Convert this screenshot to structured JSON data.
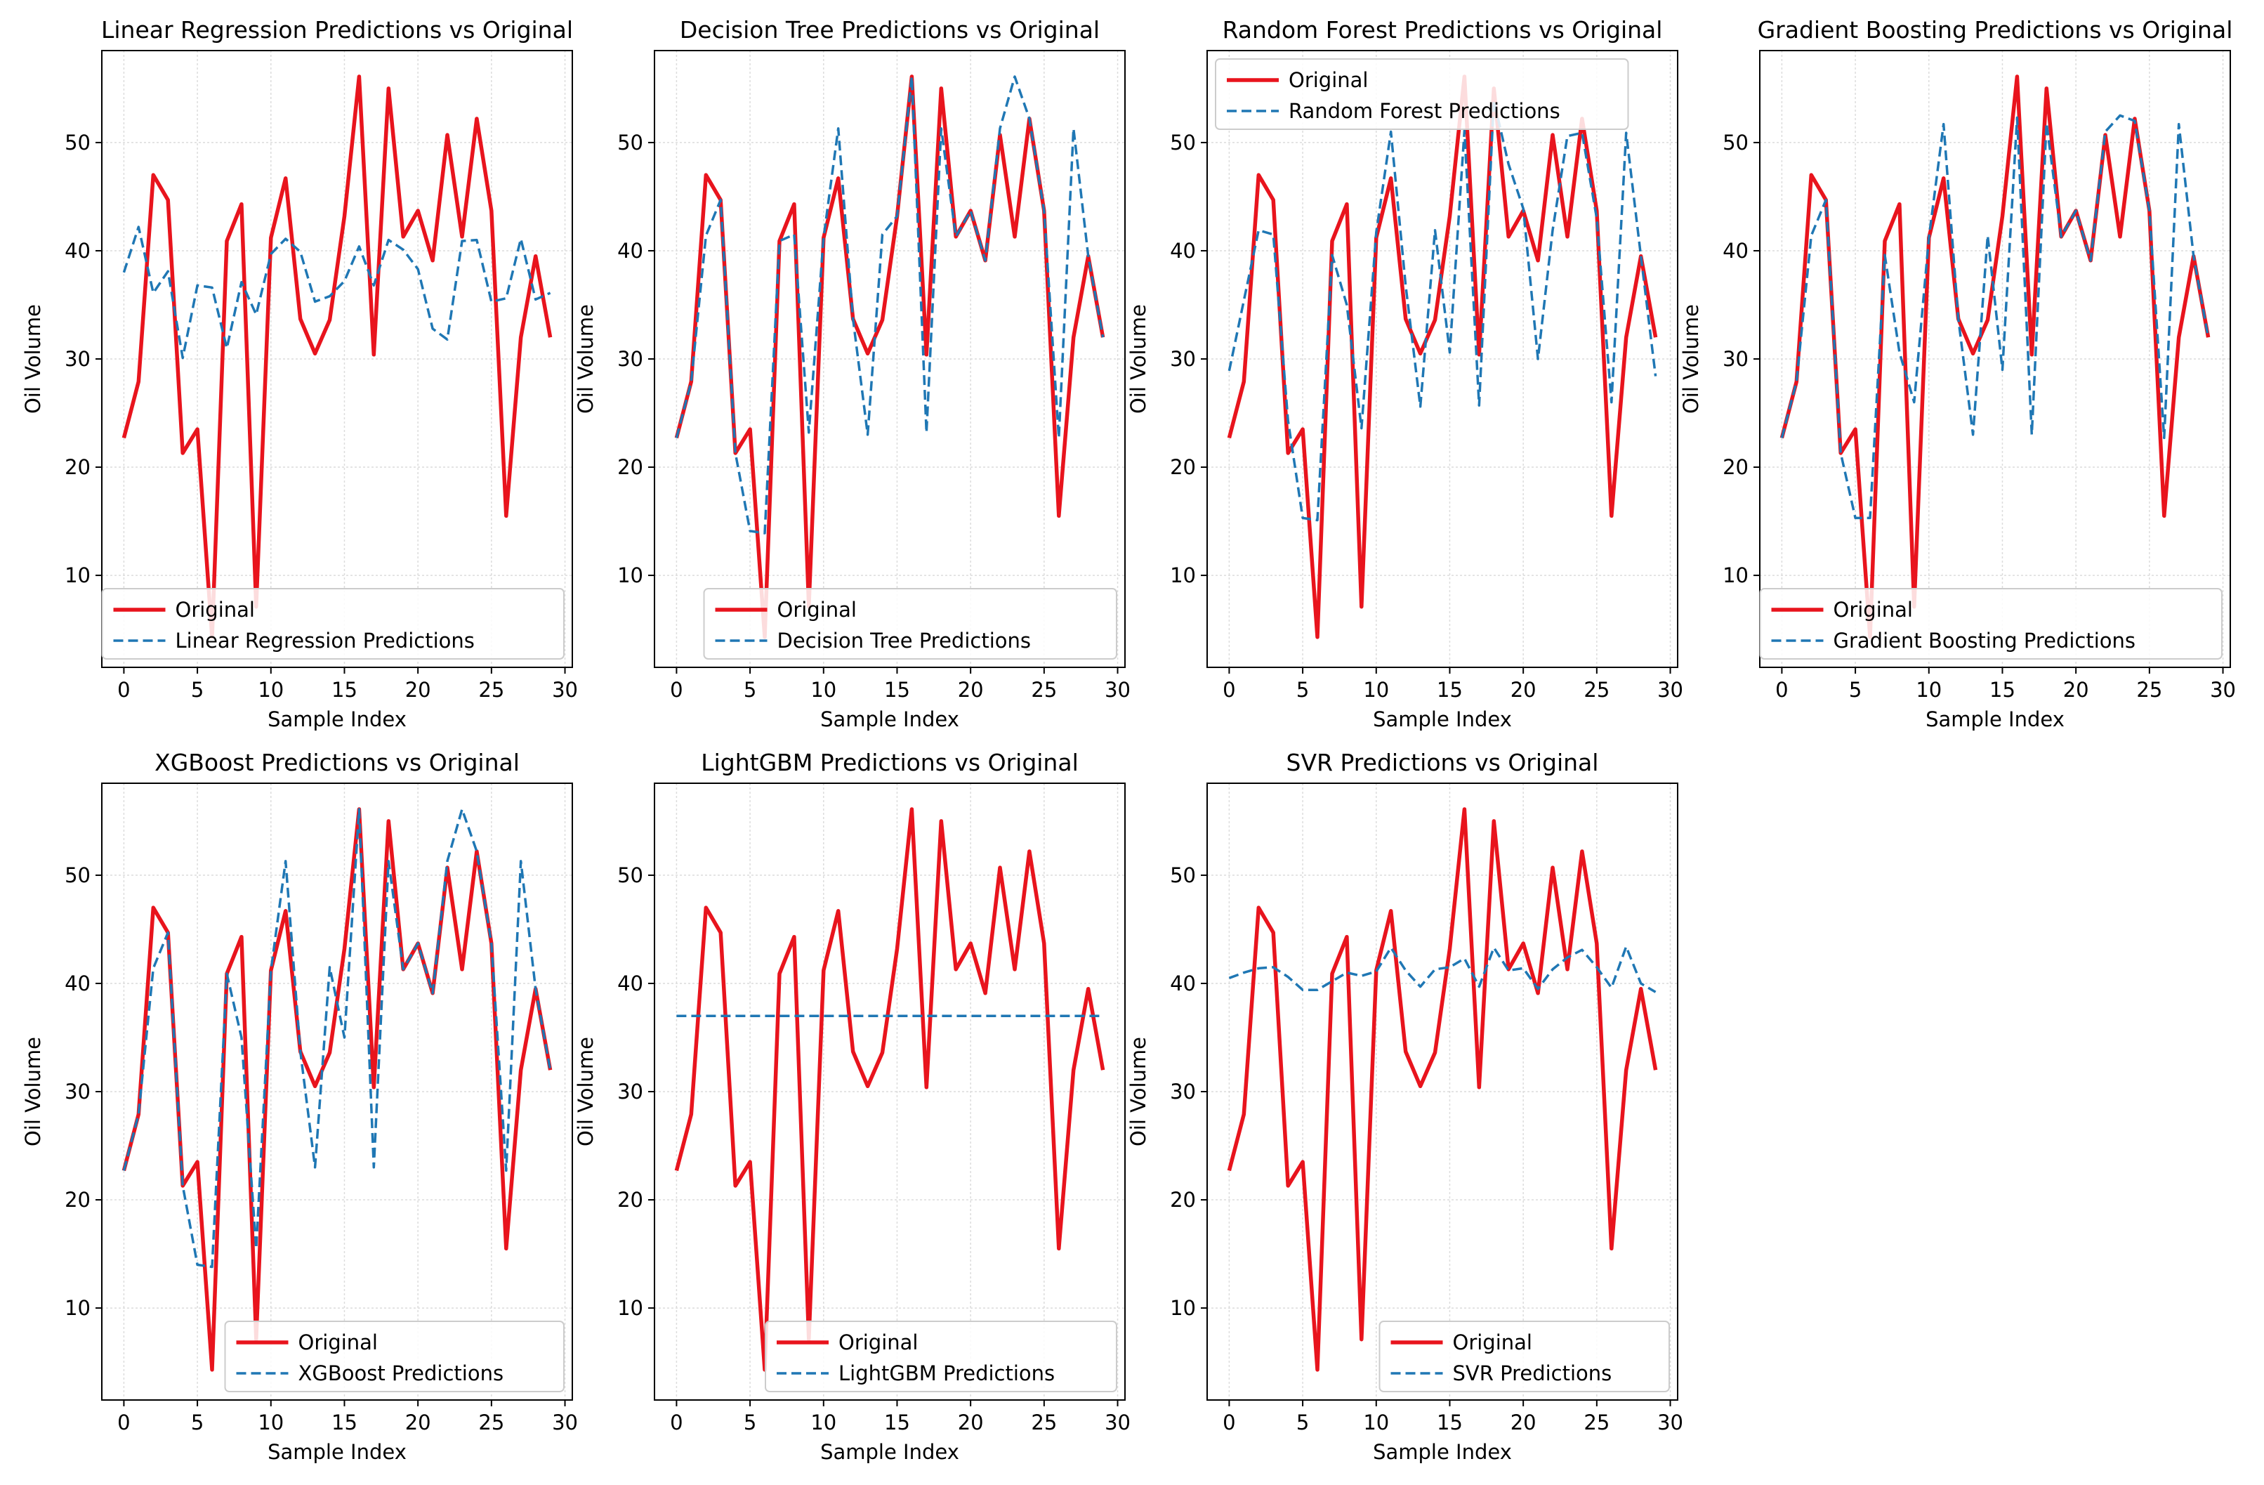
{
  "figure": {
    "shared": {
      "xlabel": "Sample Index",
      "ylabel": "Oil Volume",
      "xticks": [
        0,
        5,
        10,
        15,
        20,
        25,
        30
      ],
      "yticks": [
        10,
        20,
        30,
        40,
        50
      ],
      "xlim": [
        -1.5,
        30.5
      ],
      "ylim": [
        1.5,
        58.5
      ],
      "grid": true,
      "original_color": "#e8141d",
      "prediction_color": "#1f77b4"
    }
  },
  "chart_data": [
    {
      "type": "line",
      "title": "Linear Regression Predictions vs Original",
      "legend_position": "lower-right",
      "x": [
        0,
        1,
        2,
        3,
        4,
        5,
        6,
        7,
        8,
        9,
        10,
        11,
        12,
        13,
        14,
        15,
        16,
        17,
        18,
        19,
        20,
        21,
        22,
        23,
        24,
        25,
        26,
        27,
        28,
        29
      ],
      "series": [
        {
          "name": "Original",
          "style": "solid",
          "values": [
            22.7,
            27.9,
            47.0,
            44.7,
            21.3,
            23.5,
            4.3,
            40.9,
            44.3,
            7.1,
            41.2,
            46.7,
            33.7,
            30.5,
            33.6,
            43.2,
            56.1,
            30.4,
            55.0,
            41.3,
            43.7,
            39.1,
            50.7,
            41.3,
            52.2,
            43.7,
            15.5,
            32.0,
            39.5,
            32.0
          ]
        },
        {
          "name": "Linear Regression Predictions",
          "style": "dashed",
          "values": [
            38.0,
            42.2,
            36.1,
            38.1,
            30.1,
            36.8,
            36.6,
            31.0,
            37.1,
            34.1,
            39.7,
            41.1,
            39.9,
            35.3,
            35.8,
            37.2,
            40.4,
            36.8,
            41.0,
            40.1,
            38.3,
            32.8,
            31.8,
            40.9,
            41.0,
            35.3,
            35.6,
            41.1,
            35.5,
            36.1
          ]
        }
      ]
    },
    {
      "type": "line",
      "title": "Decision Tree Predictions vs Original",
      "legend_position": "lower-right",
      "x": [
        0,
        1,
        2,
        3,
        4,
        5,
        6,
        7,
        8,
        9,
        10,
        11,
        12,
        13,
        14,
        15,
        16,
        17,
        18,
        19,
        20,
        21,
        22,
        23,
        24,
        25,
        26,
        27,
        28,
        29
      ],
      "series": [
        {
          "name": "Original",
          "style": "solid",
          "values": [
            22.7,
            27.9,
            47.0,
            44.7,
            21.3,
            23.5,
            4.3,
            40.9,
            44.3,
            7.1,
            41.2,
            46.7,
            33.7,
            30.5,
            33.6,
            43.2,
            56.1,
            30.4,
            55.0,
            41.3,
            43.7,
            39.1,
            50.7,
            41.3,
            52.2,
            43.7,
            15.5,
            32.0,
            39.5,
            32.0
          ]
        },
        {
          "name": "Decision Tree Predictions",
          "style": "dashed",
          "values": [
            22.7,
            27.9,
            41.4,
            44.7,
            21.3,
            14.1,
            13.9,
            40.9,
            41.5,
            23.2,
            41.2,
            51.3,
            33.7,
            23.0,
            41.5,
            43.2,
            56.1,
            23.2,
            51.3,
            41.3,
            43.7,
            39.1,
            51.3,
            56.1,
            52.2,
            43.7,
            22.7,
            51.3,
            39.5,
            32.0
          ]
        }
      ]
    },
    {
      "type": "line",
      "title": "Random Forest Predictions vs Original",
      "legend_position": "upper-left",
      "x": [
        0,
        1,
        2,
        3,
        4,
        5,
        6,
        7,
        8,
        9,
        10,
        11,
        12,
        13,
        14,
        15,
        16,
        17,
        18,
        19,
        20,
        21,
        22,
        23,
        24,
        25,
        26,
        27,
        28,
        29
      ],
      "series": [
        {
          "name": "Original",
          "style": "solid",
          "values": [
            22.7,
            27.9,
            47.0,
            44.7,
            21.3,
            23.5,
            4.3,
            40.9,
            44.3,
            7.1,
            41.2,
            46.7,
            33.7,
            30.5,
            33.6,
            43.2,
            56.1,
            30.4,
            55.0,
            41.3,
            43.7,
            39.1,
            50.7,
            41.3,
            52.2,
            43.7,
            15.5,
            32.0,
            39.5,
            32.0
          ]
        },
        {
          "name": "Random Forest Predictions",
          "style": "dashed",
          "values": [
            28.9,
            35.4,
            41.9,
            41.5,
            24.3,
            15.3,
            15.1,
            39.6,
            35.0,
            23.6,
            41.7,
            51.0,
            36.8,
            25.6,
            41.9,
            30.6,
            51.1,
            25.7,
            53.9,
            48.0,
            43.9,
            30.0,
            41.9,
            50.6,
            50.9,
            43.0,
            26.0,
            50.9,
            39.5,
            28.4
          ]
        }
      ]
    },
    {
      "type": "line",
      "title": "Gradient Boosting Predictions vs Original",
      "legend_position": "lower-right",
      "x": [
        0,
        1,
        2,
        3,
        4,
        5,
        6,
        7,
        8,
        9,
        10,
        11,
        12,
        13,
        14,
        15,
        16,
        17,
        18,
        19,
        20,
        21,
        22,
        23,
        24,
        25,
        26,
        27,
        28,
        29
      ],
      "series": [
        {
          "name": "Original",
          "style": "solid",
          "values": [
            22.7,
            27.9,
            47.0,
            44.7,
            21.3,
            23.5,
            4.3,
            40.9,
            44.3,
            7.1,
            41.2,
            46.7,
            33.7,
            30.5,
            33.6,
            43.2,
            56.1,
            30.4,
            55.0,
            41.3,
            43.7,
            39.1,
            50.7,
            41.3,
            52.2,
            43.7,
            15.5,
            32.0,
            39.5,
            32.0
          ]
        },
        {
          "name": "Gradient Boosting Predictions",
          "style": "dashed",
          "values": [
            22.7,
            27.9,
            41.4,
            44.7,
            21.3,
            15.3,
            15.3,
            39.6,
            30.6,
            26.0,
            41.2,
            51.7,
            33.7,
            23.0,
            41.4,
            29.0,
            52.3,
            23.0,
            51.8,
            41.3,
            43.7,
            39.1,
            51.0,
            52.5,
            52.0,
            43.7,
            22.7,
            51.7,
            39.5,
            32.0
          ]
        }
      ]
    },
    {
      "type": "line",
      "title": "XGBoost Predictions vs Original",
      "legend_position": "lower-right",
      "x": [
        0,
        1,
        2,
        3,
        4,
        5,
        6,
        7,
        8,
        9,
        10,
        11,
        12,
        13,
        14,
        15,
        16,
        17,
        18,
        19,
        20,
        21,
        22,
        23,
        24,
        25,
        26,
        27,
        28,
        29
      ],
      "series": [
        {
          "name": "Original",
          "style": "solid",
          "values": [
            22.7,
            27.9,
            47.0,
            44.7,
            21.3,
            23.5,
            4.3,
            40.9,
            44.3,
            7.1,
            41.2,
            46.7,
            33.7,
            30.5,
            33.6,
            43.2,
            56.1,
            30.4,
            55.0,
            41.3,
            43.7,
            39.1,
            50.7,
            41.3,
            52.2,
            43.7,
            15.5,
            32.0,
            39.5,
            32.0
          ]
        },
        {
          "name": "XGBoost Predictions",
          "style": "dashed",
          "values": [
            22.7,
            27.9,
            41.4,
            44.7,
            21.3,
            14.0,
            13.8,
            40.9,
            35.0,
            15.5,
            41.2,
            51.3,
            33.7,
            23.0,
            41.5,
            35.0,
            56.1,
            23.0,
            51.3,
            41.3,
            43.7,
            39.1,
            51.3,
            56.1,
            52.2,
            43.7,
            22.7,
            51.3,
            39.5,
            32.0
          ]
        }
      ]
    },
    {
      "type": "line",
      "title": "LightGBM Predictions vs Original",
      "legend_position": "lower-right",
      "x": [
        0,
        1,
        2,
        3,
        4,
        5,
        6,
        7,
        8,
        9,
        10,
        11,
        12,
        13,
        14,
        15,
        16,
        17,
        18,
        19,
        20,
        21,
        22,
        23,
        24,
        25,
        26,
        27,
        28,
        29
      ],
      "series": [
        {
          "name": "Original",
          "style": "solid",
          "values": [
            22.7,
            27.9,
            47.0,
            44.7,
            21.3,
            23.5,
            4.3,
            40.9,
            44.3,
            7.1,
            41.2,
            46.7,
            33.7,
            30.5,
            33.6,
            43.2,
            56.1,
            30.4,
            55.0,
            41.3,
            43.7,
            39.1,
            50.7,
            41.3,
            52.2,
            43.7,
            15.5,
            32.0,
            39.5,
            32.0
          ]
        },
        {
          "name": "LightGBM Predictions",
          "style": "dashed",
          "values": [
            37.0,
            37.0,
            37.0,
            37.0,
            37.0,
            37.0,
            37.0,
            37.0,
            37.0,
            37.0,
            37.0,
            37.0,
            37.0,
            37.0,
            37.0,
            37.0,
            37.0,
            37.0,
            37.0,
            37.0,
            37.0,
            37.0,
            37.0,
            37.0,
            37.0,
            37.0,
            37.0,
            37.0,
            37.0,
            37.0
          ]
        }
      ]
    },
    {
      "type": "line",
      "title": "SVR Predictions vs Original",
      "legend_position": "lower-right",
      "x": [
        0,
        1,
        2,
        3,
        4,
        5,
        6,
        7,
        8,
        9,
        10,
        11,
        12,
        13,
        14,
        15,
        16,
        17,
        18,
        19,
        20,
        21,
        22,
        23,
        24,
        25,
        26,
        27,
        28,
        29
      ],
      "series": [
        {
          "name": "Original",
          "style": "solid",
          "values": [
            22.7,
            27.9,
            47.0,
            44.7,
            21.3,
            23.5,
            4.3,
            40.9,
            44.3,
            7.1,
            41.2,
            46.7,
            33.7,
            30.5,
            33.6,
            43.2,
            56.1,
            30.4,
            55.0,
            41.3,
            43.7,
            39.1,
            50.7,
            41.3,
            52.2,
            43.7,
            15.5,
            32.0,
            39.5,
            32.0
          ]
        },
        {
          "name": "SVR Predictions",
          "style": "dashed",
          "values": [
            40.5,
            41.0,
            41.4,
            41.5,
            40.6,
            39.4,
            39.4,
            40.2,
            41.0,
            40.7,
            41.1,
            43.3,
            41.2,
            39.7,
            41.3,
            41.5,
            42.3,
            39.7,
            43.3,
            41.2,
            41.4,
            39.5,
            41.3,
            42.4,
            43.1,
            41.5,
            39.6,
            43.4,
            40.0,
            39.2
          ]
        }
      ]
    }
  ]
}
